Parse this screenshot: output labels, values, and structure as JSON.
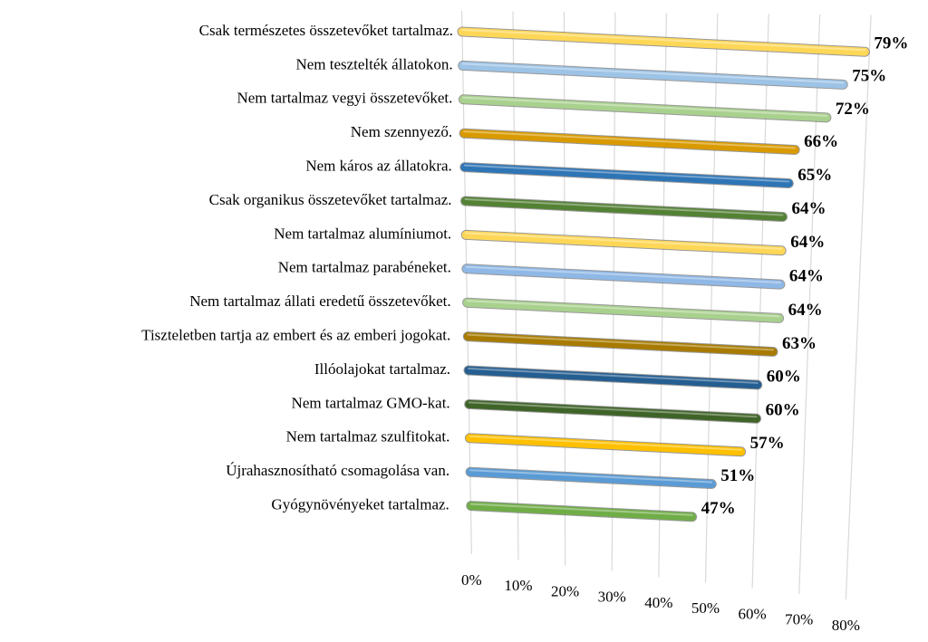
{
  "chart_data": {
    "type": "bar",
    "orientation": "horizontal",
    "categories": [
      "Csak természetes összetevőket tartalmaz.",
      "Nem tesztelték állatokon.",
      "Nem tartalmaz vegyi összetevőket.",
      "Nem szennyező.",
      "Nem káros az állatokra.",
      "Csak organikus összetevőket tartalmaz.",
      "Nem tartalmaz alumíniumot.",
      "Nem tartalmaz parabéneket.",
      "Nem tartalmaz állati eredetű összetevőket.",
      "Tiszteletben tartja az embert és az emberi jogokat.",
      "Illóolajokat tartalmaz.",
      "Nem tartalmaz GMO-kat.",
      "Nem tartalmaz szulfitokat.",
      "Újrahasznosítható csomagolása van.",
      "Gyógynövényeket tartalmaz."
    ],
    "values": [
      79,
      75,
      72,
      66,
      65,
      64,
      64,
      64,
      64,
      63,
      60,
      60,
      57,
      51,
      47
    ],
    "value_labels": [
      "79%",
      "75%",
      "72%",
      "66%",
      "65%",
      "64%",
      "64%",
      "64%",
      "64%",
      "63%",
      "60%",
      "60%",
      "57%",
      "51%",
      "47%"
    ],
    "colors": [
      "#ffd757",
      "#9dc3e6",
      "#a9d18e",
      "#d99a00",
      "#2e75b6",
      "#548235",
      "#ffd757",
      "#8fb8e6",
      "#a9d18e",
      "#a87b00",
      "#255e91",
      "#3f6428",
      "#ffc000",
      "#5b9bd5",
      "#70ad47"
    ],
    "xlim": [
      0,
      80
    ],
    "xticks": [
      {
        "value": 0,
        "label": "0%"
      },
      {
        "value": 10,
        "label": "10%"
      },
      {
        "value": 20,
        "label": "20%"
      },
      {
        "value": 30,
        "label": "30%"
      },
      {
        "value": 40,
        "label": "40%"
      },
      {
        "value": 50,
        "label": "50%"
      },
      {
        "value": 60,
        "label": "60%"
      },
      {
        "value": 70,
        "label": "70%"
      },
      {
        "value": 80,
        "label": "80%"
      }
    ],
    "grid": true
  }
}
